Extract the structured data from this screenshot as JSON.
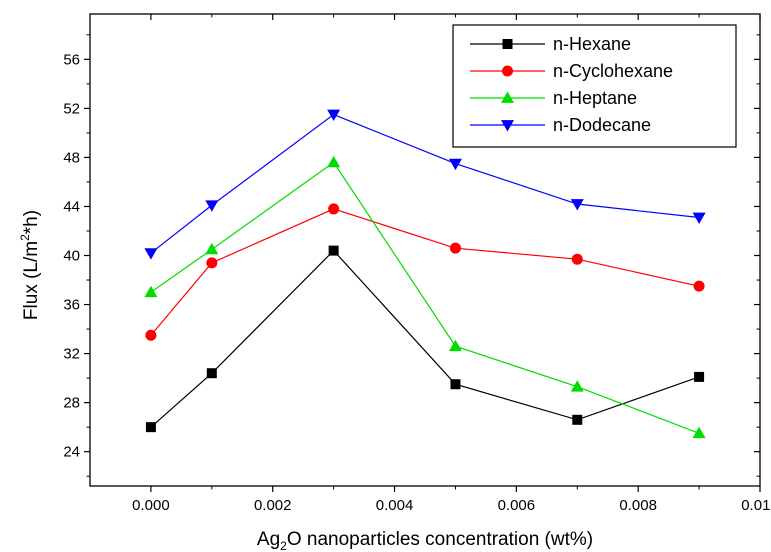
{
  "chart_data": {
    "type": "line",
    "title": "",
    "xlabel": {
      "main": "Ag",
      "sub": "2",
      "rest": "O nanoparticles concentration (wt%)"
    },
    "ylabel": {
      "main": "Flux (L/m",
      "sup": "2",
      "rest": "*h)"
    },
    "xlim": [
      -0.001,
      0.01
    ],
    "ylim": [
      21.2,
      59.7
    ],
    "x_ticks": [
      0.0,
      0.002,
      0.004,
      0.006,
      0.008,
      0.01
    ],
    "x_tick_labels": [
      "0.000",
      "0.002",
      "0.004",
      "0.006",
      "0.008",
      "0.010"
    ],
    "y_ticks": [
      24,
      28,
      32,
      36,
      40,
      44,
      48,
      52,
      56
    ],
    "y_tick_labels": [
      "24",
      "28",
      "32",
      "36",
      "40",
      "44",
      "48",
      "52",
      "56"
    ],
    "grid": false,
    "legend_position": "top-right",
    "x": [
      0.0,
      0.001,
      0.003,
      0.005,
      0.007,
      0.009
    ],
    "series": [
      {
        "name": "n-Hexane",
        "color": "#000000",
        "marker": "square",
        "values": [
          26.0,
          30.4,
          40.4,
          29.5,
          26.6,
          30.1
        ]
      },
      {
        "name": "n-Cyclohexane",
        "color": "#ff0000",
        "marker": "circle",
        "values": [
          33.5,
          39.4,
          43.8,
          40.6,
          39.7,
          37.5
        ]
      },
      {
        "name": "n-Heptane",
        "color": "#00dd00",
        "marker": "triangle-up",
        "values": [
          37.0,
          40.5,
          47.6,
          32.6,
          29.3,
          25.5
        ]
      },
      {
        "name": "n-Dodecane",
        "color": "#0000ff",
        "marker": "triangle-down",
        "values": [
          40.2,
          44.1,
          51.5,
          47.5,
          44.2,
          43.1
        ]
      }
    ]
  }
}
